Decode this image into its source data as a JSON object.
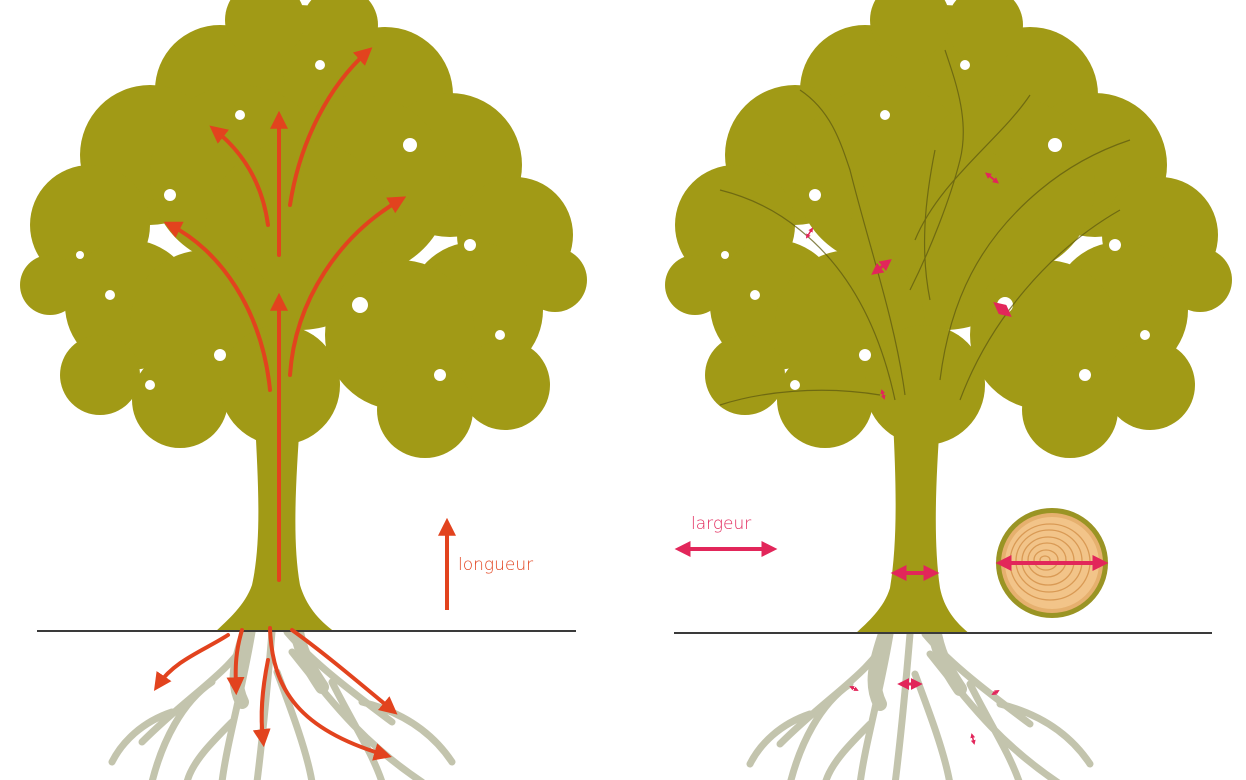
{
  "labels": {
    "length": "longueur",
    "width": "largeur"
  },
  "colors": {
    "foliage": "#a19a16",
    "foliage_dark": "#8e8712",
    "roots": "#c3c4ad",
    "ground": "#3a3a3a",
    "length_arrow": "#e2431e",
    "width_arrow": "#e2265a",
    "wood_light": "#f2c489",
    "wood_ring": "#d99a55",
    "bark": "#9a9424"
  },
  "icons": {
    "length_arrow": "arrow-up-icon",
    "width_arrow": "double-arrow-horizontal-icon",
    "trunk_cross_section": "wood-rings-icon"
  }
}
